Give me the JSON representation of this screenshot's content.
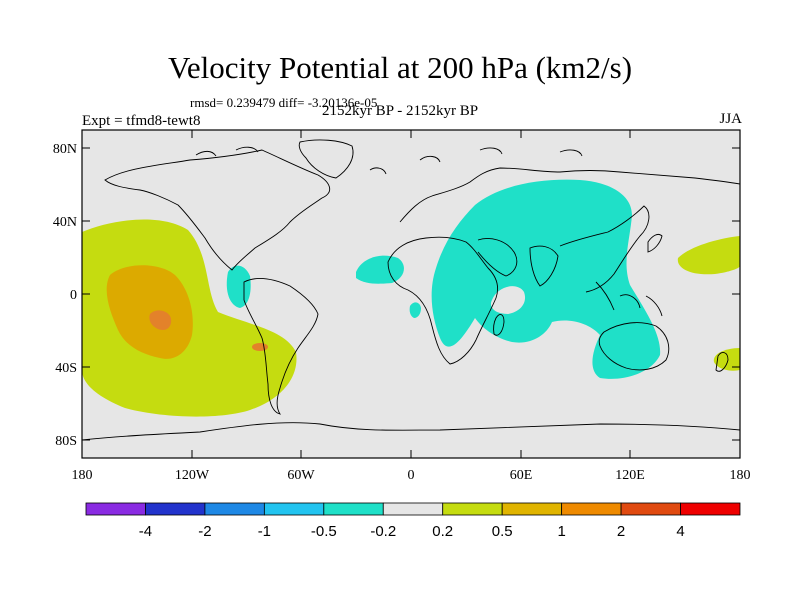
{
  "header": {
    "title": "Velocity Potential at 200 hPa (km2/s)",
    "stats": "rmsd= 0.239479 diff= -3.20136e-05",
    "experiment": "Expt = tfmd8-tewt8",
    "period": "2152kyr BP - 2152kyr BP",
    "season": "JJA"
  },
  "axes": {
    "x_ticks": [
      "180",
      "120W",
      "60W",
      "0",
      "60E",
      "120E",
      "180"
    ],
    "y_ticks": [
      "80N",
      "40N",
      "0",
      "40S",
      "80S"
    ]
  },
  "colorbar": {
    "labels": [
      "-4",
      "-2",
      "-1",
      "-0.5",
      "-0.2",
      "0.2",
      "0.5",
      "1",
      "2",
      "4"
    ],
    "colors": [
      "#8a2be2",
      "#2233cc",
      "#1e88e5",
      "#22c4f0",
      "#1fe0c8",
      "#e6e6e6",
      "#c5dc10",
      "#e0b400",
      "#ee8a00",
      "#e04a10",
      "#ee0000"
    ]
  },
  "map_colors": {
    "background": "#e6e6e6",
    "positive_weak": "#c5dc10",
    "positive_mid": "#dcaa00",
    "positive_strong": "#e3822a",
    "negative_weak": "#1fe0c8"
  }
}
